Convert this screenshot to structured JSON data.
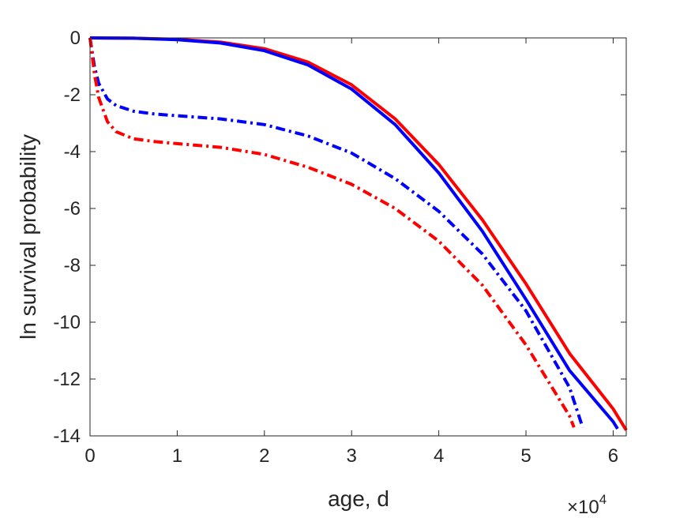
{
  "chart_data": {
    "type": "line",
    "title": "",
    "xlabel": "age, d",
    "ylabel": "ln survival probability",
    "x_exponent_label": "×10",
    "x_exponent_power": "4",
    "x_multiplier": 10000,
    "xlim": [
      0,
      61500
    ],
    "ylim": [
      -14,
      0
    ],
    "xticks": [
      0,
      10000,
      20000,
      30000,
      40000,
      50000,
      60000
    ],
    "xtick_labels": [
      "0",
      "1",
      "2",
      "3",
      "4",
      "5",
      "6"
    ],
    "yticks": [
      0,
      -2,
      -4,
      -6,
      -8,
      -10,
      -12,
      -14
    ],
    "ytick_labels": [
      "0",
      "-2",
      "-4",
      "-6",
      "-8",
      "-10",
      "-12",
      "-14"
    ],
    "grid": false,
    "box": true,
    "series": [
      {
        "color": "#ff0000",
        "style": "solid",
        "x": [
          0,
          5000,
          10000,
          15000,
          20000,
          25000,
          30000,
          35000,
          40000,
          45000,
          50000,
          55000,
          60000,
          61500
        ],
        "y": [
          0,
          -0.01,
          -0.05,
          -0.15,
          -0.38,
          -0.85,
          -1.65,
          -2.85,
          -4.45,
          -6.4,
          -8.65,
          -11.1,
          -13.05,
          -13.8
        ]
      },
      {
        "color": "#0000ff",
        "style": "solid",
        "x": [
          0,
          5000,
          10000,
          15000,
          20000,
          25000,
          30000,
          35000,
          40000,
          45000,
          50000,
          55000,
          60000,
          60500
        ],
        "y": [
          0,
          -0.01,
          -0.06,
          -0.18,
          -0.45,
          -0.95,
          -1.8,
          -3.05,
          -4.75,
          -6.8,
          -9.2,
          -11.7,
          -13.5,
          -13.75
        ]
      },
      {
        "color": "#0000ff",
        "style": "dashdot",
        "x": [
          0,
          500,
          1000,
          2000,
          3000,
          5000,
          7500,
          10000,
          15000,
          20000,
          25000,
          30000,
          35000,
          40000,
          45000,
          50000,
          55000,
          56500
        ],
        "y": [
          0,
          -1.0,
          -1.6,
          -2.15,
          -2.38,
          -2.58,
          -2.68,
          -2.74,
          -2.85,
          -3.05,
          -3.45,
          -4.05,
          -4.95,
          -6.1,
          -7.6,
          -9.6,
          -12.3,
          -13.7
        ]
      },
      {
        "color": "#ff0000",
        "style": "dashdot",
        "x": [
          0,
          500,
          1000,
          2000,
          3000,
          5000,
          7500,
          10000,
          15000,
          20000,
          25000,
          30000,
          35000,
          40000,
          45000,
          50000,
          55000,
          55500
        ],
        "y": [
          0,
          -1.25,
          -2.1,
          -2.95,
          -3.3,
          -3.55,
          -3.65,
          -3.72,
          -3.85,
          -4.1,
          -4.55,
          -5.15,
          -6.0,
          -7.15,
          -8.7,
          -10.8,
          -13.3,
          -13.7
        ]
      }
    ]
  }
}
